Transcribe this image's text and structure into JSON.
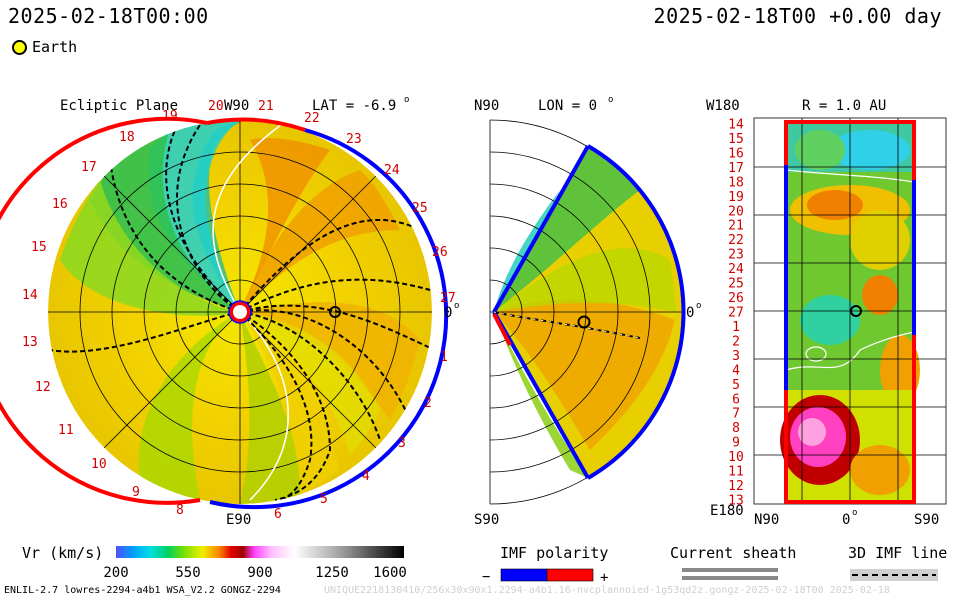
{
  "header": {
    "left_time": "2025-02-18T00:00",
    "right_time": "2025-02-18T00 +0.00 day"
  },
  "legend": {
    "earth_label": "Earth"
  },
  "ecliptic_panel": {
    "title": "Ecliptic Plane",
    "top_label": "W90",
    "bottom_label": "E90",
    "right_label": "0",
    "lat_label": "LAT = -6.9",
    "degree_sign": "o",
    "ticks_red": [
      "13",
      "14",
      "15",
      "16",
      "17",
      "18",
      "19",
      "20",
      "21"
    ],
    "ticks_red_lower": [
      "12",
      "11",
      "10",
      "9",
      "8"
    ],
    "ticks_red_top": [
      "22",
      "23",
      "24"
    ],
    "ticks_right": [
      "25",
      "26",
      "27",
      "1",
      "2",
      "3",
      "4",
      "5",
      "6"
    ]
  },
  "meridional_panel": {
    "top_label": "N90",
    "lon_label": "LON = 0",
    "bottom_label": "S90",
    "right_label": "0"
  },
  "map_panel": {
    "top_label": "W180",
    "title": "R = 1.0 AU",
    "bottom_left_label": "E180",
    "x_labels": [
      "N90",
      "0",
      "S90"
    ],
    "rows": [
      "14",
      "15",
      "16",
      "17",
      "18",
      "19",
      "20",
      "21",
      "22",
      "23",
      "24",
      "25",
      "26",
      "27",
      "1",
      "2",
      "3",
      "4",
      "5",
      "6",
      "7",
      "8",
      "9",
      "10",
      "11",
      "12",
      "13"
    ]
  },
  "colorbar": {
    "label": "Vr (km/s)",
    "ticks": [
      "200",
      "550",
      "900",
      "1250",
      "1600"
    ]
  },
  "imf_polarity": {
    "title": "IMF polarity",
    "minus": "−",
    "plus": "+"
  },
  "current_sheath": {
    "title": "Current sheath"
  },
  "imf_line": {
    "title": "3D IMF line"
  },
  "footer": {
    "left": "ENLIL-2.7 lowres-2294-a4b1 WSA_V2.2 GONGZ-2294",
    "right": "UNIQUE2218130410/256x30x90x1.2294-a4b1.16-nvcplannoied-1g53qd2z.gongz-2025-02-18T00  2025-02-18"
  },
  "colors": {
    "polarity_negative": "#0000ff",
    "polarity_positive": "#ff0000",
    "tick_labels": "#d00000"
  }
}
